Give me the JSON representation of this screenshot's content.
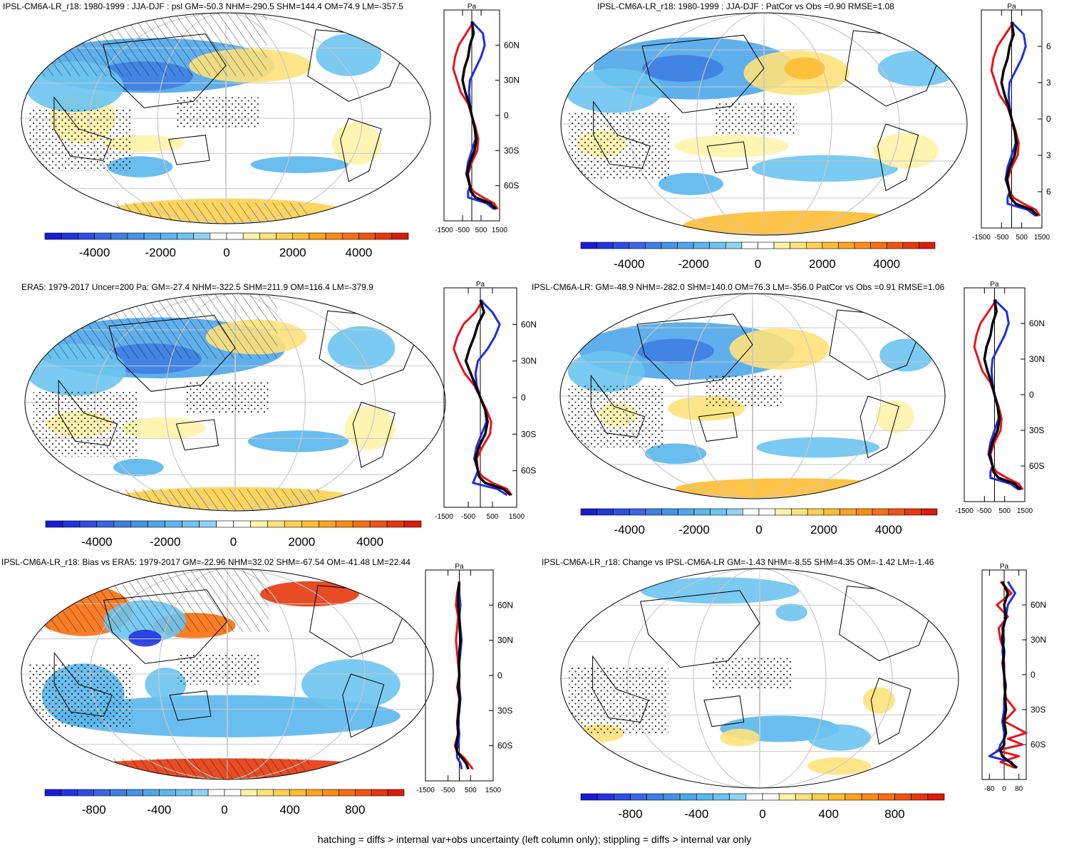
{
  "chart_data": [
    {
      "type": "map",
      "title": "IPSL-CM6A-LR_r18: 1980-1999 : JJA-DJF : psl GM=-50.3 NHM=-290.5 SHM=144.4 OM=74.9 LM=-357.5",
      "colorbar_ticks": [
        "-4000",
        "-2000",
        "0",
        "2000",
        "4000"
      ],
      "colorbar_range": [
        -5500,
        5500
      ],
      "colorbar_levels": 22,
      "profile_axis": {
        "unit": "Pa",
        "xticks": [
          "-1500",
          "-500",
          "500",
          "1500"
        ],
        "yticks": [
          "60N",
          "30N",
          "0",
          "30S",
          "60S"
        ],
        "xlim": [
          -1500,
          1500
        ]
      },
      "hatching": true,
      "profile_series": [
        {
          "name": "red",
          "color": "#e8141c",
          "lat": [
            -80,
            -75,
            -70,
            -65,
            -60,
            -50,
            -40,
            -30,
            -20,
            -10,
            0,
            10,
            20,
            30,
            40,
            50,
            60,
            70,
            80
          ],
          "values": [
            1400,
            1200,
            600,
            100,
            -100,
            -200,
            0,
            300,
            350,
            200,
            0,
            -200,
            -600,
            -800,
            -1000,
            -900,
            -700,
            -300,
            100
          ]
        },
        {
          "name": "blue",
          "color": "#1f2de0",
          "lat": [
            -80,
            -75,
            -70,
            -65,
            -60,
            -50,
            -40,
            -30,
            -20,
            -10,
            0,
            10,
            20,
            30,
            40,
            50,
            60,
            70,
            80
          ],
          "values": [
            1200,
            800,
            -200,
            -200,
            -100,
            -300,
            -200,
            0,
            200,
            150,
            0,
            -100,
            -150,
            -100,
            200,
            500,
            700,
            600,
            0
          ]
        },
        {
          "name": "black",
          "color": "#000000",
          "lat": [
            -80,
            -75,
            -70,
            -65,
            -60,
            -50,
            -40,
            -30,
            -20,
            -10,
            0,
            10,
            20,
            30,
            40,
            50,
            60,
            70,
            80
          ],
          "values": [
            1300,
            1000,
            200,
            -50,
            -100,
            -250,
            -100,
            150,
            250,
            150,
            0,
            -150,
            -350,
            -500,
            -400,
            -200,
            -100,
            100,
            0
          ]
        }
      ]
    },
    {
      "type": "map",
      "title": "IPSL-CM6A-LR_r18: 1980-1999 : JJA-DJF : PatCor vs Obs =0.90 RMSE=1.08",
      "colorbar_ticks": [
        "-4000",
        "-2000",
        "0",
        "2000",
        "4000"
      ],
      "colorbar_range": [
        -5500,
        5500
      ],
      "colorbar_levels": 22,
      "profile_axis": {
        "unit": "Pa",
        "xticks": [
          "-1500",
          "-500",
          "500",
          "1500"
        ],
        "yticks": [
          "6",
          "3",
          "0",
          "3",
          "6"
        ],
        "xlim": [
          -1500,
          1500
        ]
      },
      "hatching": false,
      "profile_series": [
        {
          "name": "red",
          "color": "#e8141c",
          "lat": [
            -80,
            -75,
            -70,
            -65,
            -60,
            -50,
            -40,
            -30,
            -20,
            -10,
            0,
            10,
            20,
            30,
            40,
            50,
            60,
            70,
            80
          ],
          "values": [
            1400,
            1200,
            600,
            100,
            -100,
            -200,
            0,
            300,
            350,
            200,
            0,
            -200,
            -600,
            -800,
            -1000,
            -900,
            -700,
            -300,
            100
          ]
        },
        {
          "name": "blue",
          "color": "#1f2de0",
          "lat": [
            -80,
            -75,
            -70,
            -65,
            -60,
            -50,
            -40,
            -30,
            -20,
            -10,
            0,
            10,
            20,
            30,
            40,
            50,
            60,
            70,
            80
          ],
          "values": [
            1200,
            800,
            -200,
            -200,
            -100,
            -300,
            -200,
            0,
            200,
            150,
            0,
            -100,
            -150,
            -100,
            200,
            500,
            700,
            600,
            0
          ]
        },
        {
          "name": "black",
          "color": "#000000",
          "lat": [
            -80,
            -75,
            -70,
            -65,
            -60,
            -50,
            -40,
            -30,
            -20,
            -10,
            0,
            10,
            20,
            30,
            40,
            50,
            60,
            70,
            80
          ],
          "values": [
            1300,
            1000,
            200,
            -50,
            -100,
            -250,
            -100,
            150,
            250,
            150,
            0,
            -150,
            -350,
            -500,
            -400,
            -200,
            -100,
            100,
            0
          ]
        }
      ]
    },
    {
      "type": "map",
      "title": "ERA5: 1979-2017 Uncer=200 Pa: GM=-27.4 NHM=-322.5 SHM=211.9 OM=116.4 LM=-379.9",
      "colorbar_ticks": [
        "-4000",
        "-2000",
        "0",
        "2000",
        "4000"
      ],
      "colorbar_range": [
        -5500,
        5500
      ],
      "colorbar_levels": 22,
      "profile_axis": {
        "unit": "Pa",
        "xticks": [
          "-1500",
          "-500",
          "500",
          "1500"
        ],
        "yticks": [
          "60N",
          "30N",
          "0",
          "30S",
          "60S"
        ],
        "xlim": [
          -1500,
          1500
        ]
      },
      "hatching": true,
      "profile_series": [
        {
          "name": "red",
          "color": "#e8141c",
          "lat": [
            -80,
            -75,
            -70,
            -65,
            -60,
            -50,
            -40,
            -30,
            -20,
            -10,
            0,
            10,
            20,
            30,
            40,
            50,
            60,
            70,
            80
          ],
          "values": [
            1300,
            1100,
            500,
            100,
            -100,
            -150,
            100,
            400,
            450,
            250,
            0,
            -250,
            -650,
            -900,
            -1100,
            -950,
            -700,
            -200,
            100
          ]
        },
        {
          "name": "blue",
          "color": "#1f2de0",
          "lat": [
            -80,
            -75,
            -70,
            -65,
            -60,
            -50,
            -40,
            -30,
            -20,
            -10,
            0,
            10,
            20,
            30,
            40,
            50,
            60,
            70,
            80
          ],
          "values": [
            1100,
            700,
            -300,
            -200,
            -100,
            -250,
            -150,
            50,
            250,
            200,
            0,
            -150,
            -200,
            -100,
            300,
            600,
            800,
            500,
            0
          ]
        },
        {
          "name": "black",
          "color": "#000000",
          "lat": [
            -80,
            -75,
            -70,
            -65,
            -60,
            -50,
            -40,
            -30,
            -20,
            -10,
            0,
            10,
            20,
            30,
            40,
            50,
            60,
            70,
            80
          ],
          "values": [
            1250,
            950,
            200,
            -50,
            -100,
            -200,
            -50,
            200,
            300,
            200,
            0,
            -200,
            -400,
            -600,
            -450,
            -250,
            -100,
            150,
            0
          ]
        }
      ]
    },
    {
      "type": "map",
      "title": "IPSL-CM6A-LR: GM=-48.9 NHM=-282.0 SHM=140.0 OM=76.3 LM=-356.0 PatCor vs Obs =0.91 RMSE=1.06",
      "colorbar_ticks": [
        "-4000",
        "-2000",
        "0",
        "2000",
        "4000"
      ],
      "colorbar_range": [
        -5500,
        5500
      ],
      "colorbar_levels": 22,
      "profile_axis": {
        "unit": "Pa",
        "xticks": [
          "-1500",
          "-500",
          "500",
          "1500"
        ],
        "yticks": [
          "60N",
          "30N",
          "0",
          "30S",
          "60S"
        ],
        "xlim": [
          -1500,
          1500
        ]
      },
      "hatching": false,
      "profile_series": [
        {
          "name": "red",
          "color": "#e8141c",
          "lat": [
            -80,
            -75,
            -70,
            -65,
            -60,
            -50,
            -40,
            -30,
            -20,
            -10,
            0,
            10,
            20,
            30,
            40,
            50,
            60,
            70,
            80
          ],
          "values": [
            1400,
            1200,
            600,
            100,
            -100,
            -200,
            0,
            300,
            350,
            200,
            0,
            -200,
            -600,
            -800,
            -1000,
            -900,
            -700,
            -300,
            100
          ]
        },
        {
          "name": "blue",
          "color": "#1f2de0",
          "lat": [
            -80,
            -75,
            -70,
            -65,
            -60,
            -50,
            -40,
            -30,
            -20,
            -10,
            0,
            10,
            20,
            30,
            40,
            50,
            60,
            70,
            80
          ],
          "values": [
            1200,
            800,
            -200,
            -200,
            -100,
            -300,
            -200,
            0,
            200,
            150,
            0,
            -100,
            -150,
            -100,
            200,
            500,
            700,
            600,
            0
          ]
        },
        {
          "name": "black",
          "color": "#000000",
          "lat": [
            -80,
            -75,
            -70,
            -65,
            -60,
            -50,
            -40,
            -30,
            -20,
            -10,
            0,
            10,
            20,
            30,
            40,
            50,
            60,
            70,
            80
          ],
          "values": [
            1300,
            1000,
            200,
            -50,
            -100,
            -250,
            -100,
            150,
            250,
            150,
            0,
            -150,
            -350,
            -500,
            -400,
            -200,
            -100,
            100,
            0
          ]
        }
      ]
    },
    {
      "type": "map",
      "title": "IPSL-CM6A-LR_r18: Bias vs ERA5: 1979-2017 GM=-22.96 NHM=32.02 SHM=-67.54 OM=-41.48 LM=22.44",
      "colorbar_ticks": [
        "-800",
        "-400",
        "0",
        "400",
        "800"
      ],
      "colorbar_range": [
        -1100,
        1100
      ],
      "colorbar_levels": 22,
      "profile_axis": {
        "unit": "Pa",
        "xticks": [
          "-1500",
          "-500",
          "500",
          "1500"
        ],
        "yticks": [
          "60N",
          "30N",
          "0",
          "30S",
          "60S"
        ],
        "xlim": [
          -1500,
          1500
        ]
      },
      "hatching": true,
      "profile_series": [
        {
          "name": "red",
          "color": "#e8141c",
          "lat": [
            -80,
            -75,
            -70,
            -65,
            -60,
            -50,
            -40,
            -30,
            -20,
            -10,
            0,
            10,
            20,
            30,
            40,
            50,
            60,
            70,
            80
          ],
          "values": [
            600,
            400,
            200,
            -100,
            -200,
            -50,
            -100,
            -50,
            0,
            -100,
            0,
            -50,
            -100,
            -150,
            -100,
            -50,
            -150,
            -100,
            0
          ]
        },
        {
          "name": "blue",
          "color": "#1f2de0",
          "lat": [
            -80,
            -75,
            -70,
            -65,
            -60,
            -50,
            -40,
            -30,
            -20,
            -10,
            0,
            10,
            20,
            30,
            40,
            50,
            60,
            70,
            80
          ],
          "values": [
            100,
            50,
            -100,
            -100,
            -50,
            0,
            -50,
            0,
            50,
            0,
            0,
            0,
            50,
            100,
            50,
            0,
            50,
            0,
            0
          ]
        },
        {
          "name": "black",
          "color": "#000000",
          "lat": [
            -80,
            -75,
            -70,
            -65,
            -60,
            -50,
            -40,
            -30,
            -20,
            -10,
            0,
            10,
            20,
            30,
            40,
            50,
            60,
            70,
            80
          ],
          "values": [
            400,
            300,
            100,
            -100,
            -150,
            -50,
            -80,
            -20,
            20,
            -50,
            0,
            -20,
            0,
            50,
            20,
            0,
            -50,
            -50,
            0
          ]
        }
      ]
    },
    {
      "type": "map",
      "title": "IPSL-CM6A-LR_r18: Change vs IPSL-CM6A-LR GM=-1.43 NHM=-8.55 SHM=4.35 OM=-1.42 LM=-1.46",
      "colorbar_ticks": [
        "-800",
        "-400",
        "0",
        "400",
        "800"
      ],
      "colorbar_range": [
        -1100,
        1100
      ],
      "colorbar_levels": 22,
      "profile_axis": {
        "unit": "Pa",
        "xticks": [
          "-80",
          "0",
          "80"
        ],
        "yticks": [
          "60N",
          "30N",
          "0",
          "30S",
          "60S"
        ],
        "xlim": [
          -120,
          120
        ]
      },
      "hatching": false,
      "profile_series": [
        {
          "name": "red",
          "color": "#e8141c",
          "lat": [
            -80,
            -75,
            -70,
            -65,
            -60,
            -55,
            -50,
            -40,
            -30,
            -20,
            -10,
            0,
            10,
            20,
            30,
            40,
            50,
            60,
            70,
            80
          ],
          "values": [
            60,
            -20,
            80,
            -40,
            100,
            20,
            120,
            0,
            60,
            10,
            0,
            0,
            -10,
            0,
            -20,
            -30,
            20,
            -40,
            40,
            -20
          ]
        },
        {
          "name": "blue",
          "color": "#1f2de0",
          "lat": [
            -80,
            -75,
            -70,
            -65,
            -60,
            -55,
            -50,
            -40,
            -30,
            -20,
            -10,
            0,
            10,
            20,
            30,
            40,
            50,
            60,
            70,
            80
          ],
          "values": [
            60,
            40,
            -80,
            -30,
            -20,
            0,
            0,
            -10,
            0,
            0,
            10,
            0,
            0,
            -10,
            0,
            -10,
            10,
            20,
            60,
            20
          ]
        },
        {
          "name": "black",
          "color": "#000000",
          "lat": [
            -80,
            -75,
            -70,
            -65,
            -60,
            -55,
            -50,
            -40,
            -30,
            -20,
            -10,
            0,
            10,
            20,
            30,
            40,
            50,
            60,
            70,
            80
          ],
          "values": [
            70,
            30,
            -10,
            -20,
            0,
            0,
            10,
            0,
            10,
            5,
            5,
            0,
            -5,
            0,
            -10,
            -5,
            10,
            0,
            20,
            -10
          ]
        }
      ]
    }
  ],
  "footer": "hatching = diffs > internal var+obs uncertainty (left column only); stippling = diffs > internal var only"
}
